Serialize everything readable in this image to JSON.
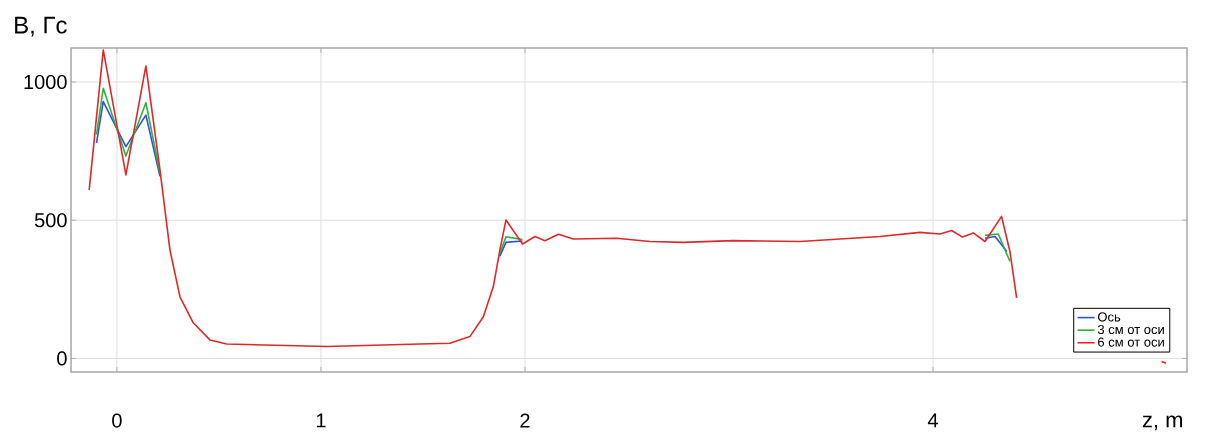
{
  "chart_data": {
    "type": "line",
    "ylabel": "B, Гс",
    "xlabel": "z, m",
    "x": [
      -0.136,
      -0.067,
      0.044,
      0.142,
      0.211,
      0.26,
      0.309,
      0.374,
      0.456,
      0.538,
      1.03,
      1.485,
      1.632,
      1.73,
      1.796,
      1.845,
      1.877,
      1.907,
      1.988,
      2.049,
      2.098,
      2.164,
      2.237,
      2.449,
      2.613,
      2.776,
      3.02,
      3.348,
      3.74,
      3.936,
      4.034,
      4.091,
      4.145,
      4.197,
      4.255,
      4.336,
      4.377,
      4.41,
      4.7,
      5.12,
      5.142
    ],
    "series": [
      {
        "name": "Ось",
        "color": "#3050e0",
        "x": [
          -0.1,
          -0.067,
          0.044,
          0.142,
          0.211,
          1.0,
          1.877,
          1.907,
          1.988,
          3.0,
          4.255,
          4.304,
          4.362
        ],
        "values": [
          780,
          929,
          766,
          880,
          659,
          null,
          370,
          420,
          425,
          null,
          435,
          441,
          387
        ]
      },
      {
        "name": "3 см от оси",
        "color": "#30b040",
        "x": [
          -0.1,
          -0.067,
          0.044,
          0.142,
          0.211,
          1.0,
          1.877,
          1.907,
          1.988,
          3.0,
          4.255,
          4.32,
          4.377
        ],
        "values": [
          810,
          977,
          732,
          925,
          670,
          null,
          380,
          440,
          430,
          null,
          445,
          450,
          351
        ]
      },
      {
        "name": "6 см от оси",
        "color": "#e02828",
        "values": [
          609,
          1116,
          664,
          1058,
          682,
          392,
          223,
          129,
          67,
          52,
          43,
          52,
          55,
          79,
          151,
          260,
          392,
          501,
          414,
          441,
          426,
          449,
          432,
          435,
          423,
          420,
          426,
          423,
          441,
          456,
          450,
          463,
          439,
          454,
          423,
          514,
          387,
          219,
          null,
          -11,
          -17
        ]
      }
    ],
    "xlim": [
      -0.225,
      5.245
    ],
    "ylim": [
      -49,
      1123
    ],
    "xticks": [
      0,
      1,
      2,
      4
    ],
    "yticks": [
      0,
      500,
      1000
    ],
    "grid": true,
    "legend": "bottom right"
  }
}
